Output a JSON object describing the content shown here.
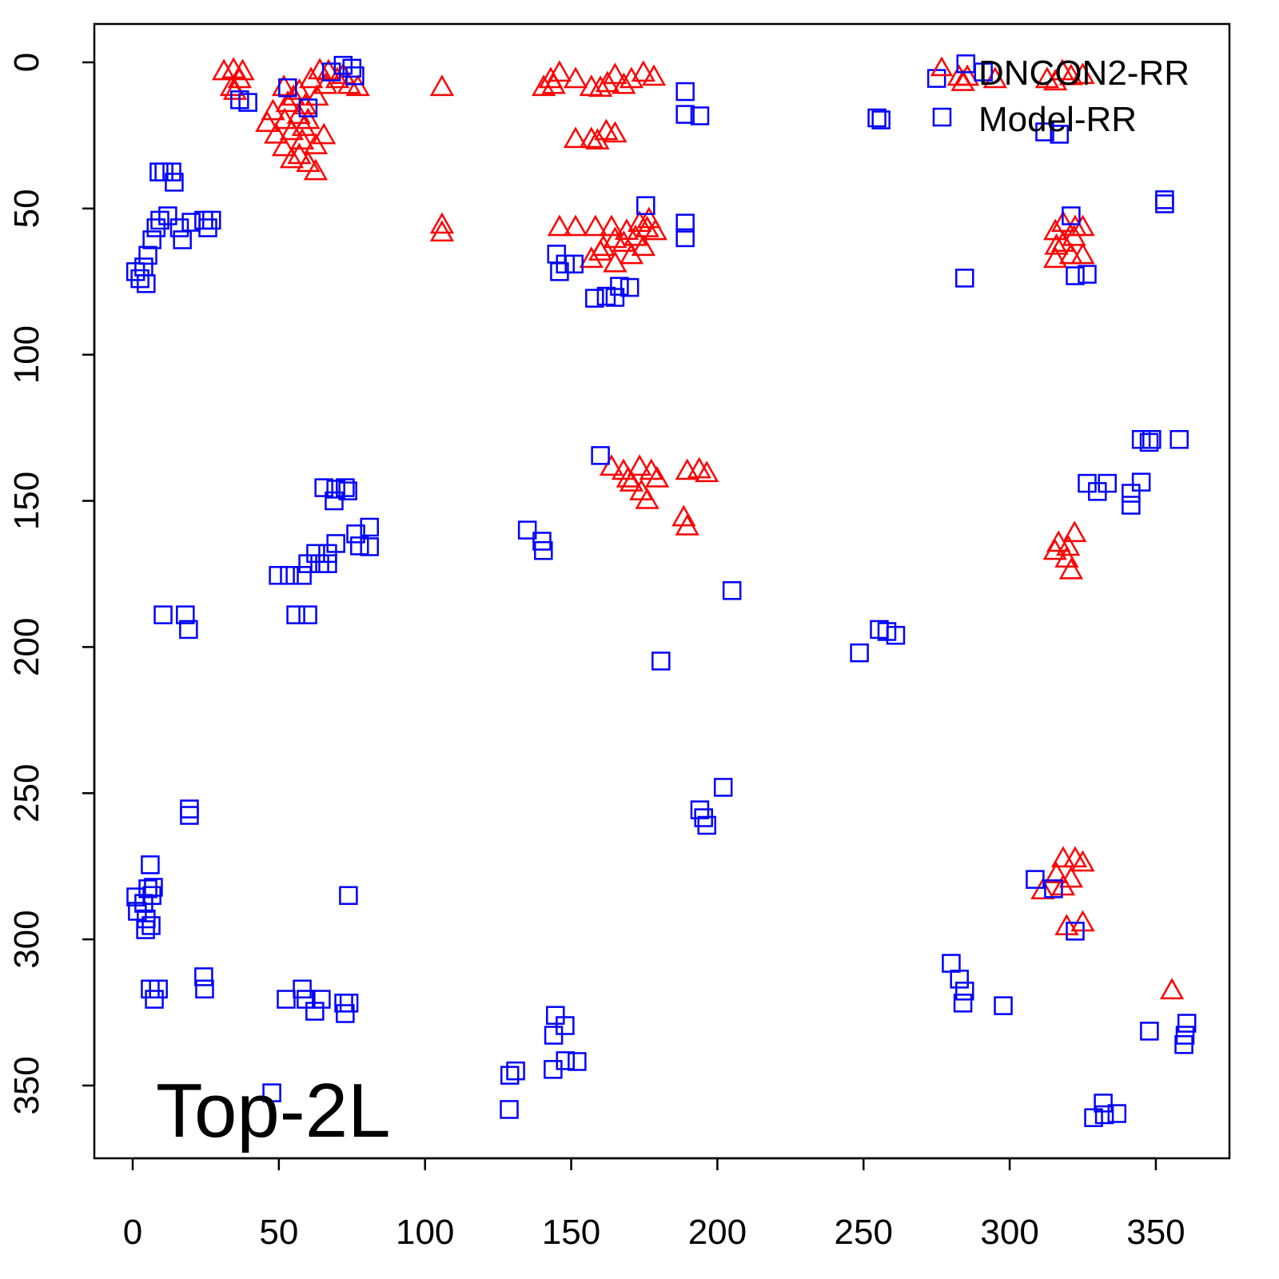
{
  "chart_data": {
    "type": "scatter",
    "title": "",
    "annotation": "Top-2L",
    "xlabel": "",
    "ylabel": "",
    "xlim": [
      -13,
      375
    ],
    "ylim": [
      375,
      -13
    ],
    "y_reversed": true,
    "xticks": [
      0,
      50,
      100,
      150,
      200,
      250,
      300,
      350
    ],
    "yticks": [
      0,
      50,
      100,
      150,
      200,
      250,
      300,
      350
    ],
    "xtick_labels": [
      "0",
      "50",
      "100",
      "150",
      "200",
      "250",
      "300",
      "350"
    ],
    "ytick_labels": [
      "0",
      "50",
      "100",
      "150",
      "200",
      "250",
      "300",
      "350"
    ],
    "grid": false,
    "legend_position": "top-right",
    "series": [
      {
        "name": "DNCON2-RR",
        "marker": "triangle",
        "color": "#ff0000",
        "points": [
          [
            31.2,
            3.3
          ],
          [
            34.5,
            2.7
          ],
          [
            36.6,
            6
          ],
          [
            33.9,
            8.7
          ],
          [
            37.6,
            3.3
          ],
          [
            35,
            10
          ],
          [
            46,
            21
          ],
          [
            49,
            25
          ],
          [
            51.7,
            29.3
          ],
          [
            54.4,
            33.4
          ],
          [
            57,
            32
          ],
          [
            60,
            34.7
          ],
          [
            62.6,
            37.5
          ],
          [
            62.6,
            28.6
          ],
          [
            65.4,
            25.2
          ],
          [
            53,
            14.2
          ],
          [
            57,
            10
          ],
          [
            61,
            6
          ],
          [
            67,
            3.3
          ],
          [
            72,
            4.6
          ],
          [
            77,
            8.7
          ],
          [
            51.7,
            8.7
          ],
          [
            56.8,
            18.3
          ],
          [
            58.5,
            22.4
          ],
          [
            54.4,
            23.8
          ],
          [
            48,
            17
          ],
          [
            52,
            20
          ],
          [
            55,
            12
          ],
          [
            59,
            15
          ],
          [
            63,
            12
          ],
          [
            66,
            8
          ],
          [
            70,
            6
          ],
          [
            58,
            27
          ],
          [
            60,
            20
          ],
          [
            64,
            3
          ],
          [
            74,
            8
          ],
          [
            105.8,
            8.7
          ],
          [
            105.8,
            55.8
          ],
          [
            105.8,
            58.5
          ],
          [
            143,
            6
          ],
          [
            146,
            3.8
          ],
          [
            151.5,
            6
          ],
          [
            140.6,
            8.7
          ],
          [
            156.9,
            8.7
          ],
          [
            162.4,
            7.4
          ],
          [
            165,
            4.6
          ],
          [
            170.6,
            6
          ],
          [
            174.7,
            3.8
          ],
          [
            178.3,
            5.2
          ],
          [
            144,
            8
          ],
          [
            160,
            9
          ],
          [
            168,
            8
          ],
          [
            151.5,
            26.5
          ],
          [
            156.9,
            26.5
          ],
          [
            162,
            23.8
          ],
          [
            165,
            24.6
          ],
          [
            159,
            27
          ],
          [
            146,
            56.6
          ],
          [
            151.5,
            56.6
          ],
          [
            158.3,
            56.6
          ],
          [
            163.8,
            56.6
          ],
          [
            156.9,
            67.5
          ],
          [
            161,
            63.4
          ],
          [
            165,
            60.7
          ],
          [
            169,
            57.9
          ],
          [
            173.4,
            55.2
          ],
          [
            176.6,
            53.9
          ],
          [
            170.6,
            66.2
          ],
          [
            174.7,
            63.4
          ],
          [
            165,
            69
          ],
          [
            178.8,
            58
          ],
          [
            160,
            65
          ],
          [
            168,
            62
          ],
          [
            172,
            60
          ],
          [
            176,
            57
          ],
          [
            163.8,
            138.6
          ],
          [
            167.9,
            140
          ],
          [
            173.4,
            138.6
          ],
          [
            177.4,
            140
          ],
          [
            170.6,
            144
          ],
          [
            176,
            150
          ],
          [
            169.5,
            142.6
          ],
          [
            179.4,
            142.6
          ],
          [
            174,
            147
          ],
          [
            189.7,
            140
          ],
          [
            193.8,
            139.5
          ],
          [
            196.4,
            140.8
          ],
          [
            188.5,
            155.9
          ],
          [
            189.7,
            159
          ],
          [
            282.7,
            5.2
          ],
          [
            285.5,
            5.2
          ],
          [
            284,
            7
          ],
          [
            295,
            6
          ],
          [
            312.8,
            6
          ],
          [
            318,
            3.3
          ],
          [
            325,
            4.6
          ],
          [
            315.6,
            6.8
          ],
          [
            321,
            5
          ],
          [
            315.6,
            58
          ],
          [
            318.3,
            55.2
          ],
          [
            322.4,
            56.6
          ],
          [
            325,
            56.6
          ],
          [
            315.6,
            67.5
          ],
          [
            321,
            66.2
          ],
          [
            325,
            66.2
          ],
          [
            318.3,
            62
          ],
          [
            322,
            60
          ],
          [
            316,
            63
          ],
          [
            316.7,
            164.6
          ],
          [
            322.2,
            161.3
          ],
          [
            319.5,
            170
          ],
          [
            321,
            174
          ],
          [
            315.5,
            167.4
          ],
          [
            320,
            166
          ],
          [
            318.3,
            272.6
          ],
          [
            322.4,
            272.6
          ],
          [
            325,
            274
          ],
          [
            311.3,
            283.5
          ],
          [
            318.3,
            282.2
          ],
          [
            321,
            279.5
          ],
          [
            316,
            278
          ],
          [
            319.5,
            295.8
          ],
          [
            325,
            294.5
          ],
          [
            355.5,
            317.7
          ]
        ]
      },
      {
        "name": "Model-RR",
        "marker": "square",
        "color": "#0000ff",
        "points": [
          [
            36.6,
            12.8
          ],
          [
            39.4,
            13.7
          ],
          [
            68,
            3.3
          ],
          [
            72,
            1
          ],
          [
            75,
            2
          ],
          [
            76,
            4.6
          ],
          [
            60,
            15.6
          ],
          [
            53,
            8.7
          ],
          [
            10.7,
            37.5
          ],
          [
            13.4,
            37.5
          ],
          [
            14.2,
            41
          ],
          [
            9,
            37.5
          ],
          [
            1,
            71.6
          ],
          [
            2.5,
            74
          ],
          [
            3.8,
            70
          ],
          [
            4.6,
            75.7
          ],
          [
            5.2,
            66
          ],
          [
            6.6,
            60.7
          ],
          [
            8,
            56.6
          ],
          [
            9.3,
            54
          ],
          [
            12,
            52.5
          ],
          [
            16,
            56.6
          ],
          [
            17,
            60.7
          ],
          [
            20,
            54.7
          ],
          [
            24.3,
            54
          ],
          [
            25.7,
            56.6
          ],
          [
            27,
            54
          ],
          [
            189,
            10
          ],
          [
            189,
            17.8
          ],
          [
            194,
            18.3
          ],
          [
            254.6,
            19
          ],
          [
            256,
            19.7
          ],
          [
            275,
            5.5
          ],
          [
            285,
            0.5
          ],
          [
            291,
            3.3
          ],
          [
            312,
            23.8
          ],
          [
            317,
            24.6
          ],
          [
            189,
            55
          ],
          [
            189,
            60
          ],
          [
            145,
            65.6
          ],
          [
            146,
            71.6
          ],
          [
            148,
            69
          ],
          [
            151,
            69
          ],
          [
            158,
            80.7
          ],
          [
            162,
            80
          ],
          [
            165,
            80.4
          ],
          [
            166.5,
            76.6
          ],
          [
            170,
            77
          ],
          [
            175.5,
            49
          ],
          [
            284.6,
            73.8
          ],
          [
            321,
            52.5
          ],
          [
            322.4,
            73
          ],
          [
            326.5,
            72.5
          ],
          [
            353,
            47
          ],
          [
            353,
            48.4
          ],
          [
            160,
            134.5
          ],
          [
            135,
            160
          ],
          [
            140,
            163.8
          ],
          [
            140.5,
            167
          ],
          [
            205,
            180.7
          ],
          [
            180.7,
            204.8
          ],
          [
            65.4,
            145.5
          ],
          [
            69.5,
            146
          ],
          [
            72.7,
            145.5
          ],
          [
            68.9,
            150
          ],
          [
            73.6,
            146.6
          ],
          [
            49.8,
            175.5
          ],
          [
            53.6,
            175.5
          ],
          [
            58,
            175.5
          ],
          [
            59.9,
            171.5
          ],
          [
            62.6,
            168
          ],
          [
            64,
            171.5
          ],
          [
            66.7,
            168
          ],
          [
            66.7,
            171.5
          ],
          [
            69.5,
            164.6
          ],
          [
            76.3,
            161.3
          ],
          [
            77.6,
            165.4
          ],
          [
            81,
            159
          ],
          [
            81,
            165.7
          ],
          [
            55.8,
            189
          ],
          [
            59.9,
            189
          ],
          [
            10.4,
            189
          ],
          [
            18,
            189
          ],
          [
            19.1,
            194
          ],
          [
            248.6,
            202
          ],
          [
            255.4,
            194
          ],
          [
            258,
            194.7
          ],
          [
            261,
            196
          ],
          [
            202,
            248
          ],
          [
            194,
            255.7
          ],
          [
            195.3,
            258.4
          ],
          [
            196.4,
            261
          ],
          [
            19.4,
            255.4
          ],
          [
            19.4,
            257.6
          ],
          [
            6,
            274.5
          ],
          [
            1.1,
            285.5
          ],
          [
            1.6,
            290.4
          ],
          [
            3.8,
            287.7
          ],
          [
            5.2,
            282.7
          ],
          [
            6.6,
            285
          ],
          [
            7.1,
            282.2
          ],
          [
            4.4,
            296.7
          ],
          [
            6.3,
            295.3
          ],
          [
            4.6,
            293
          ],
          [
            73.8,
            285
          ],
          [
            6,
            317
          ],
          [
            7.4,
            320.5
          ],
          [
            8.8,
            317
          ],
          [
            24.3,
            312.8
          ],
          [
            24.6,
            317
          ],
          [
            52.5,
            320.5
          ],
          [
            58,
            317
          ],
          [
            59.3,
            320.5
          ],
          [
            62.3,
            324.6
          ],
          [
            64.5,
            320.5
          ],
          [
            72.2,
            321.8
          ],
          [
            72.7,
            325.4
          ],
          [
            74,
            321.8
          ],
          [
            47.6,
            352.5
          ],
          [
            129,
            346.5
          ],
          [
            131,
            345
          ],
          [
            128.8,
            358.2
          ],
          [
            144.6,
            326
          ],
          [
            144,
            332.8
          ],
          [
            147.9,
            329.5
          ],
          [
            143.8,
            344.5
          ],
          [
            148,
            341.5
          ],
          [
            152,
            341.8
          ],
          [
            280,
            308.2
          ],
          [
            282.8,
            313.6
          ],
          [
            284.6,
            317.7
          ],
          [
            284,
            321.8
          ],
          [
            297.8,
            322.7
          ],
          [
            308.7,
            279.5
          ],
          [
            315,
            282.7
          ],
          [
            322.4,
            297.2
          ],
          [
            332,
            356
          ],
          [
            332.4,
            360
          ],
          [
            336.7,
            359.6
          ],
          [
            328.7,
            361
          ],
          [
            347.8,
            331.4
          ],
          [
            360.6,
            328.7
          ],
          [
            360,
            332.8
          ],
          [
            359.6,
            336
          ],
          [
            345,
            129
          ],
          [
            347.7,
            130
          ],
          [
            348.6,
            129
          ],
          [
            358,
            129
          ],
          [
            326.5,
            144
          ],
          [
            330,
            146.8
          ],
          [
            333.4,
            144
          ],
          [
            341.5,
            147.4
          ],
          [
            341.5,
            151.5
          ],
          [
            345,
            143.6
          ]
        ]
      }
    ]
  }
}
